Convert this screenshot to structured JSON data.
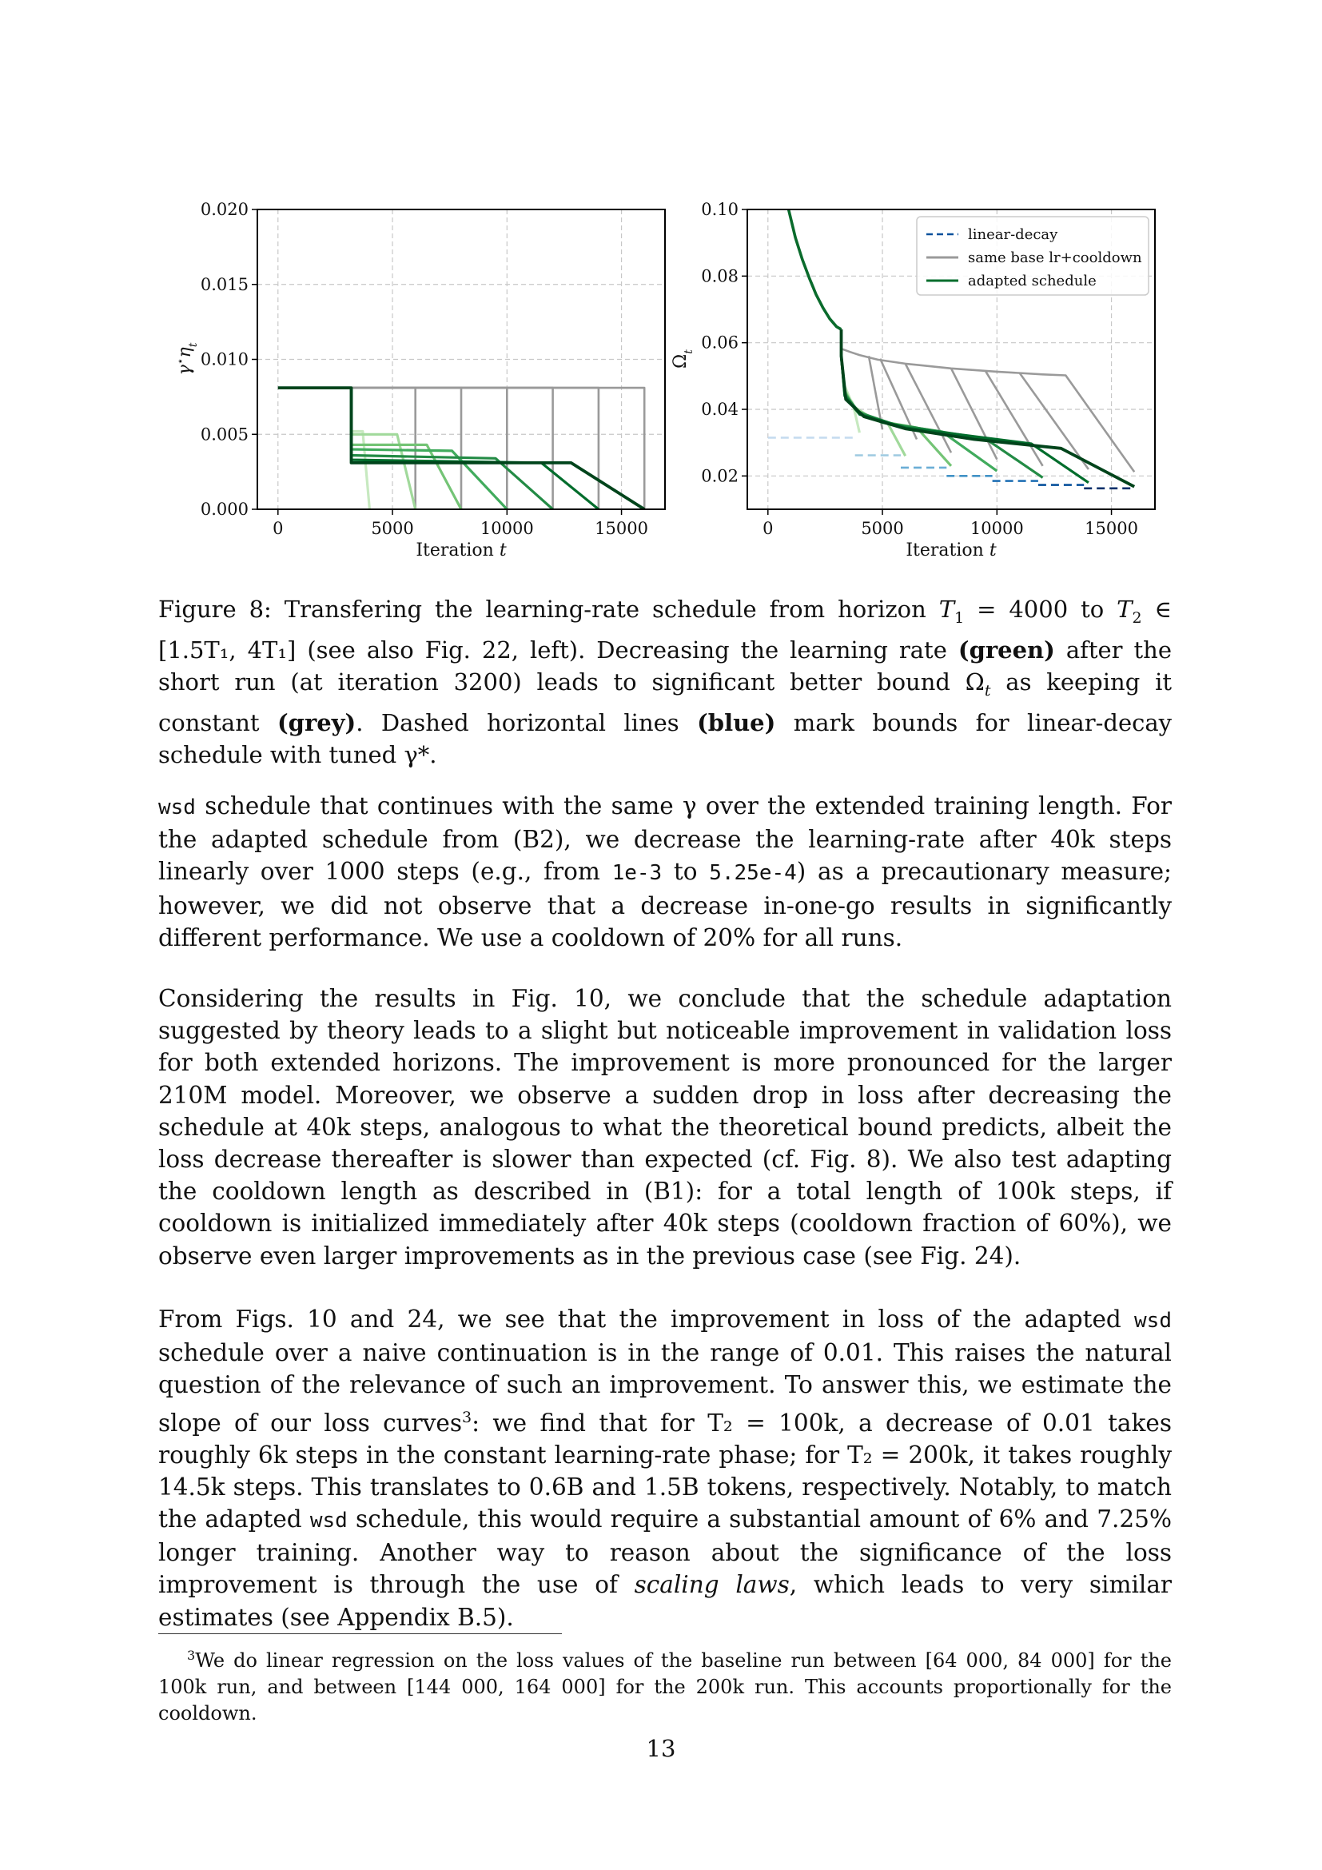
{
  "chart_data": [
    {
      "type": "line",
      "title": "",
      "xlabel": "Iteration t",
      "ylabel": "γ*η_t",
      "xlim": [
        -900,
        16900
      ],
      "ylim": [
        0,
        0.02
      ],
      "xticks": [
        "0",
        "5000",
        "10000",
        "15000"
      ],
      "yticks": [
        "0.000",
        "0.005",
        "0.010",
        "0.015",
        "0.020"
      ],
      "grid": true,
      "series": [
        {
          "group": "grey",
          "color": "#9a9a9a",
          "points": [
            [
              0,
              0.0081
            ],
            [
              3200,
              0.0081
            ],
            [
              3200,
              0.0081
            ],
            [
              6000,
              0.0081
            ],
            [
              6000,
              0.0
            ]
          ]
        },
        {
          "group": "grey",
          "color": "#9a9a9a",
          "points": [
            [
              3200,
              0.0081
            ],
            [
              8000,
              0.0081
            ],
            [
              8000,
              0.0
            ]
          ]
        },
        {
          "group": "grey",
          "color": "#9a9a9a",
          "points": [
            [
              3200,
              0.0081
            ],
            [
              10000,
              0.0081
            ],
            [
              10000,
              0.0
            ]
          ]
        },
        {
          "group": "grey",
          "color": "#9a9a9a",
          "points": [
            [
              3200,
              0.0081
            ],
            [
              12000,
              0.0081
            ],
            [
              12000,
              0.0
            ]
          ]
        },
        {
          "group": "grey",
          "color": "#9a9a9a",
          "points": [
            [
              3200,
              0.0081
            ],
            [
              14000,
              0.0081
            ],
            [
              14000,
              0.0
            ]
          ]
        },
        {
          "group": "grey",
          "color": "#9a9a9a",
          "points": [
            [
              3200,
              0.0081
            ],
            [
              16000,
              0.0081
            ],
            [
              16000,
              0.0
            ]
          ]
        },
        {
          "group": "green",
          "color": "#c7e9c0",
          "points": [
            [
              3200,
              0.0081
            ],
            [
              3200,
              0.0052
            ],
            [
              3700,
              0.0052
            ],
            [
              4000,
              0.0
            ]
          ]
        },
        {
          "group": "green",
          "color": "#a1d99b",
          "points": [
            [
              3200,
              0.0081
            ],
            [
              3200,
              0.005
            ],
            [
              5200,
              0.005
            ],
            [
              6000,
              0.0
            ]
          ]
        },
        {
          "group": "green",
          "color": "#74c476",
          "points": [
            [
              3200,
              0.0081
            ],
            [
              3200,
              0.0043
            ],
            [
              6500,
              0.0043
            ],
            [
              8000,
              0.0
            ]
          ]
        },
        {
          "group": "green",
          "color": "#41ab5d",
          "points": [
            [
              3200,
              0.0081
            ],
            [
              3200,
              0.004
            ],
            [
              7600,
              0.0039
            ],
            [
              10000,
              0.0
            ]
          ]
        },
        {
          "group": "green",
          "color": "#238b45",
          "points": [
            [
              3200,
              0.0081
            ],
            [
              3200,
              0.0036
            ],
            [
              9500,
              0.0034
            ],
            [
              12000,
              0.0
            ]
          ]
        },
        {
          "group": "green",
          "color": "#006d2c",
          "points": [
            [
              3200,
              0.0081
            ],
            [
              3200,
              0.0033
            ],
            [
              11500,
              0.0031
            ],
            [
              14000,
              0.0
            ]
          ]
        },
        {
          "group": "green",
          "color": "#00441b",
          "points": [
            [
              0,
              0.0081
            ],
            [
              3200,
              0.0081
            ],
            [
              3200,
              0.0031
            ],
            [
              12800,
              0.0031
            ],
            [
              16000,
              0.0
            ]
          ]
        }
      ]
    },
    {
      "type": "line",
      "title": "",
      "xlabel": "Iteration t",
      "ylabel": "Ω_t",
      "xlim": [
        -900,
        16900
      ],
      "ylim": [
        0.01,
        0.1
      ],
      "xticks": [
        "0",
        "5000",
        "10000",
        "15000"
      ],
      "yticks": [
        "0.02",
        "0.04",
        "0.06",
        "0.08",
        "0.10"
      ],
      "grid": true,
      "legend": {
        "placement": "top-right",
        "entries": [
          {
            "label": "linear-decay",
            "color": "#08519c",
            "dash": true
          },
          {
            "label": "same base lr+cooldown",
            "color": "#9a9a9a",
            "dash": false
          },
          {
            "label": "adapted schedule",
            "color": "#006d2c",
            "dash": false
          }
        ]
      },
      "series": [
        {
          "group": "initial",
          "color": "#0a6b2c",
          "points": [
            [
              900,
              0.1
            ],
            [
              1200,
              0.0915
            ],
            [
              1500,
              0.085
            ],
            [
              1800,
              0.0795
            ],
            [
              2100,
              0.0745
            ],
            [
              2400,
              0.0705
            ],
            [
              2700,
              0.0672
            ],
            [
              3000,
              0.0648
            ],
            [
              3200,
              0.064
            ]
          ]
        },
        {
          "group": "grey",
          "color": "#9a9a9a",
          "points": [
            [
              3200,
              0.064
            ],
            [
              3200,
              0.0582
            ],
            [
              3600,
              0.0572
            ],
            [
              4000,
              0.0563
            ],
            [
              4800,
              0.0549
            ],
            [
              6000,
              0.0537
            ],
            [
              8000,
              0.0523
            ],
            [
              10000,
              0.0513
            ],
            [
              12000,
              0.0505
            ],
            [
              13000,
              0.0502
            ],
            [
              16000,
              0.0212
            ]
          ]
        },
        {
          "group": "grey",
          "color": "#9a9a9a",
          "points": [
            [
              4400,
              0.056
            ],
            [
              5000,
              0.034
            ]
          ]
        },
        {
          "group": "grey",
          "color": "#9a9a9a",
          "points": [
            [
              4900,
              0.0552
            ],
            [
              6500,
              0.031
            ]
          ]
        },
        {
          "group": "grey",
          "color": "#9a9a9a",
          "points": [
            [
              6000,
              0.0537
            ],
            [
              8000,
              0.027
            ]
          ]
        },
        {
          "group": "grey",
          "color": "#9a9a9a",
          "points": [
            [
              8000,
              0.0523
            ],
            [
              10000,
              0.025
            ]
          ]
        },
        {
          "group": "grey",
          "color": "#9a9a9a",
          "points": [
            [
              9500,
              0.0515
            ],
            [
              12000,
              0.023
            ]
          ]
        },
        {
          "group": "grey",
          "color": "#9a9a9a",
          "points": [
            [
              11000,
              0.0508
            ],
            [
              14000,
              0.022
            ]
          ]
        },
        {
          "group": "green",
          "color": "#c7e9c0",
          "points": [
            [
              3200,
              0.056
            ],
            [
              3350,
              0.047
            ],
            [
              3600,
              0.043
            ],
            [
              3700,
              0.042
            ],
            [
              4000,
              0.033
            ]
          ]
        },
        {
          "group": "green",
          "color": "#a1d99b",
          "points": [
            [
              3200,
              0.056
            ],
            [
              3350,
              0.046
            ],
            [
              3700,
              0.041
            ],
            [
              4500,
              0.0375
            ],
            [
              5200,
              0.0362
            ],
            [
              6000,
              0.026
            ]
          ]
        },
        {
          "group": "green",
          "color": "#74c476",
          "points": [
            [
              3200,
              0.056
            ],
            [
              3350,
              0.0455
            ],
            [
              3800,
              0.04
            ],
            [
              4800,
              0.0365
            ],
            [
              6500,
              0.0345
            ],
            [
              8000,
              0.023
            ]
          ]
        },
        {
          "group": "green",
          "color": "#41ab5d",
          "points": [
            [
              3200,
              0.056
            ],
            [
              3350,
              0.045
            ],
            [
              3900,
              0.0395
            ],
            [
              5000,
              0.036
            ],
            [
              7600,
              0.0333
            ],
            [
              10000,
              0.0215
            ]
          ]
        },
        {
          "group": "green",
          "color": "#238b45",
          "points": [
            [
              3200,
              0.056
            ],
            [
              3350,
              0.0445
            ],
            [
              4000,
              0.039
            ],
            [
              5500,
              0.0355
            ],
            [
              9500,
              0.0312
            ],
            [
              12000,
              0.0195
            ]
          ]
        },
        {
          "group": "green",
          "color": "#006d2c",
          "points": [
            [
              3200,
              0.056
            ],
            [
              3350,
              0.044
            ],
            [
              4000,
              0.0385
            ],
            [
              6000,
              0.0345
            ],
            [
              11500,
              0.0297
            ],
            [
              14000,
              0.018
            ]
          ]
        },
        {
          "group": "green",
          "color": "#00441b",
          "points": [
            [
              3200,
              0.064
            ],
            [
              3200,
              0.056
            ],
            [
              3400,
              0.043
            ],
            [
              4200,
              0.0378
            ],
            [
              6000,
              0.0342
            ],
            [
              9000,
              0.031
            ],
            [
              12800,
              0.0283
            ],
            [
              16000,
              0.0168
            ]
          ]
        },
        {
          "group": "blue",
          "color": "#c6dbef",
          "dash": true,
          "points": [
            [
              0,
              0.0315
            ],
            [
              3800,
              0.0315
            ]
          ]
        },
        {
          "group": "blue",
          "color": "#9ecae1",
          "dash": true,
          "points": [
            [
              3800,
              0.0262
            ],
            [
              5800,
              0.0262
            ]
          ]
        },
        {
          "group": "blue",
          "color": "#6baed6",
          "dash": true,
          "points": [
            [
              5800,
              0.0225
            ],
            [
              7800,
              0.0225
            ]
          ]
        },
        {
          "group": "blue",
          "color": "#4292c6",
          "dash": true,
          "points": [
            [
              7800,
              0.02
            ],
            [
              9800,
              0.02
            ]
          ]
        },
        {
          "group": "blue",
          "color": "#2171b5",
          "dash": true,
          "points": [
            [
              9800,
              0.0185
            ],
            [
              11800,
              0.0185
            ]
          ]
        },
        {
          "group": "blue",
          "color": "#08519c",
          "dash": true,
          "points": [
            [
              11800,
              0.0173
            ],
            [
              13800,
              0.0173
            ]
          ]
        },
        {
          "group": "blue",
          "color": "#08306b",
          "dash": true,
          "points": [
            [
              13800,
              0.0163
            ],
            [
              16000,
              0.0163
            ]
          ]
        }
      ]
    }
  ],
  "caption": {
    "label": "Figure 8:",
    "text_1": "Transfering the learning-rate schedule from horizon",
    "t1_eq": "T",
    "t1_sub": "1",
    "t1_val": " = 4000 to ",
    "t2": "T",
    "t2_sub": "2",
    "range": " ∈ [1.5T₁, 4T₁]",
    "text_2": "(see also Fig. 22, left). Decreasing the learning rate",
    "green": "(green)",
    "text_3": "after the short run (at iteration 3200) leads to significant better bound Ω",
    "omega_sub": "t",
    "text_4": "as keeping it constant",
    "grey": "(grey)",
    "text_5": ". Dashed horizontal lines",
    "blue": "(blue)",
    "text_6": "mark bounds for linear-decay schedule with tuned γ*."
  },
  "para1": {
    "code_wsd": "wsd",
    "t1": " schedule that continues with the same γ over the extended training length. For the adapted schedule from (B2), we decrease the learning-rate after 40k steps linearly over 1000 steps (e.g., from ",
    "code_a": "1e-3",
    "t2": " to ",
    "code_b": "5.25e-4",
    "t3": ") as a precautionary measure; however, we did not observe that a decrease in-one-go results in significantly different performance. We use a cooldown of 20% for all runs."
  },
  "para2": {
    "text": "Considering the results in Fig. 10, we conclude that the schedule adaptation suggested by theory leads to a slight but noticeable improvement in validation loss for both extended horizons. The improvement is more pronounced for the larger 210M model. Moreover, we observe a sudden drop in loss after decreasing the schedule at 40k steps, analogous to what the theoretical bound predicts, albeit the loss decrease thereafter is slower than expected (cf. Fig. 8). We also test adapting the cooldown length as described in (B1): for a total length of 100k steps, if cooldown is initialized immediately after 40k steps (cooldown fraction of 60%), we observe even larger improvements as in the previous case (see Fig. 24)."
  },
  "para3": {
    "t1": "From Figs. 10 and 24, we see that the improvement in loss of the adapted ",
    "code1": "wsd",
    "t2": " schedule over a naive continuation is in the range of 0.01.  This raises the natural question of the relevance of such an improvement. To answer this, we estimate the slope of our loss curves",
    "sup": "3",
    "t3": ": we find that for T₂ = 100k, a decrease of 0.01 takes roughly 6k steps in the constant learning-rate phase; for T₂ = 200k, it takes roughly 14.5k steps. This translates to 0.6B and 1.5B tokens, respectively. Notably, to match the adapted ",
    "code2": "wsd",
    "t4": " schedule, this would require a substantial amount of 6% and 7.25% longer training.  Another way to reason about the significance of the loss improvement is through the use of ",
    "em": "scaling laws",
    "t5": ", which leads to very similar estimates (see Appendix B.5)."
  },
  "footnote": {
    "num": "3",
    "text": "We do linear regression on the loss values of the baseline run between [64 000, 84 000] for the 100k run, and between [144 000, 164 000] for the 200k run. This accounts proportionally for the cooldown."
  },
  "page_number": "13"
}
